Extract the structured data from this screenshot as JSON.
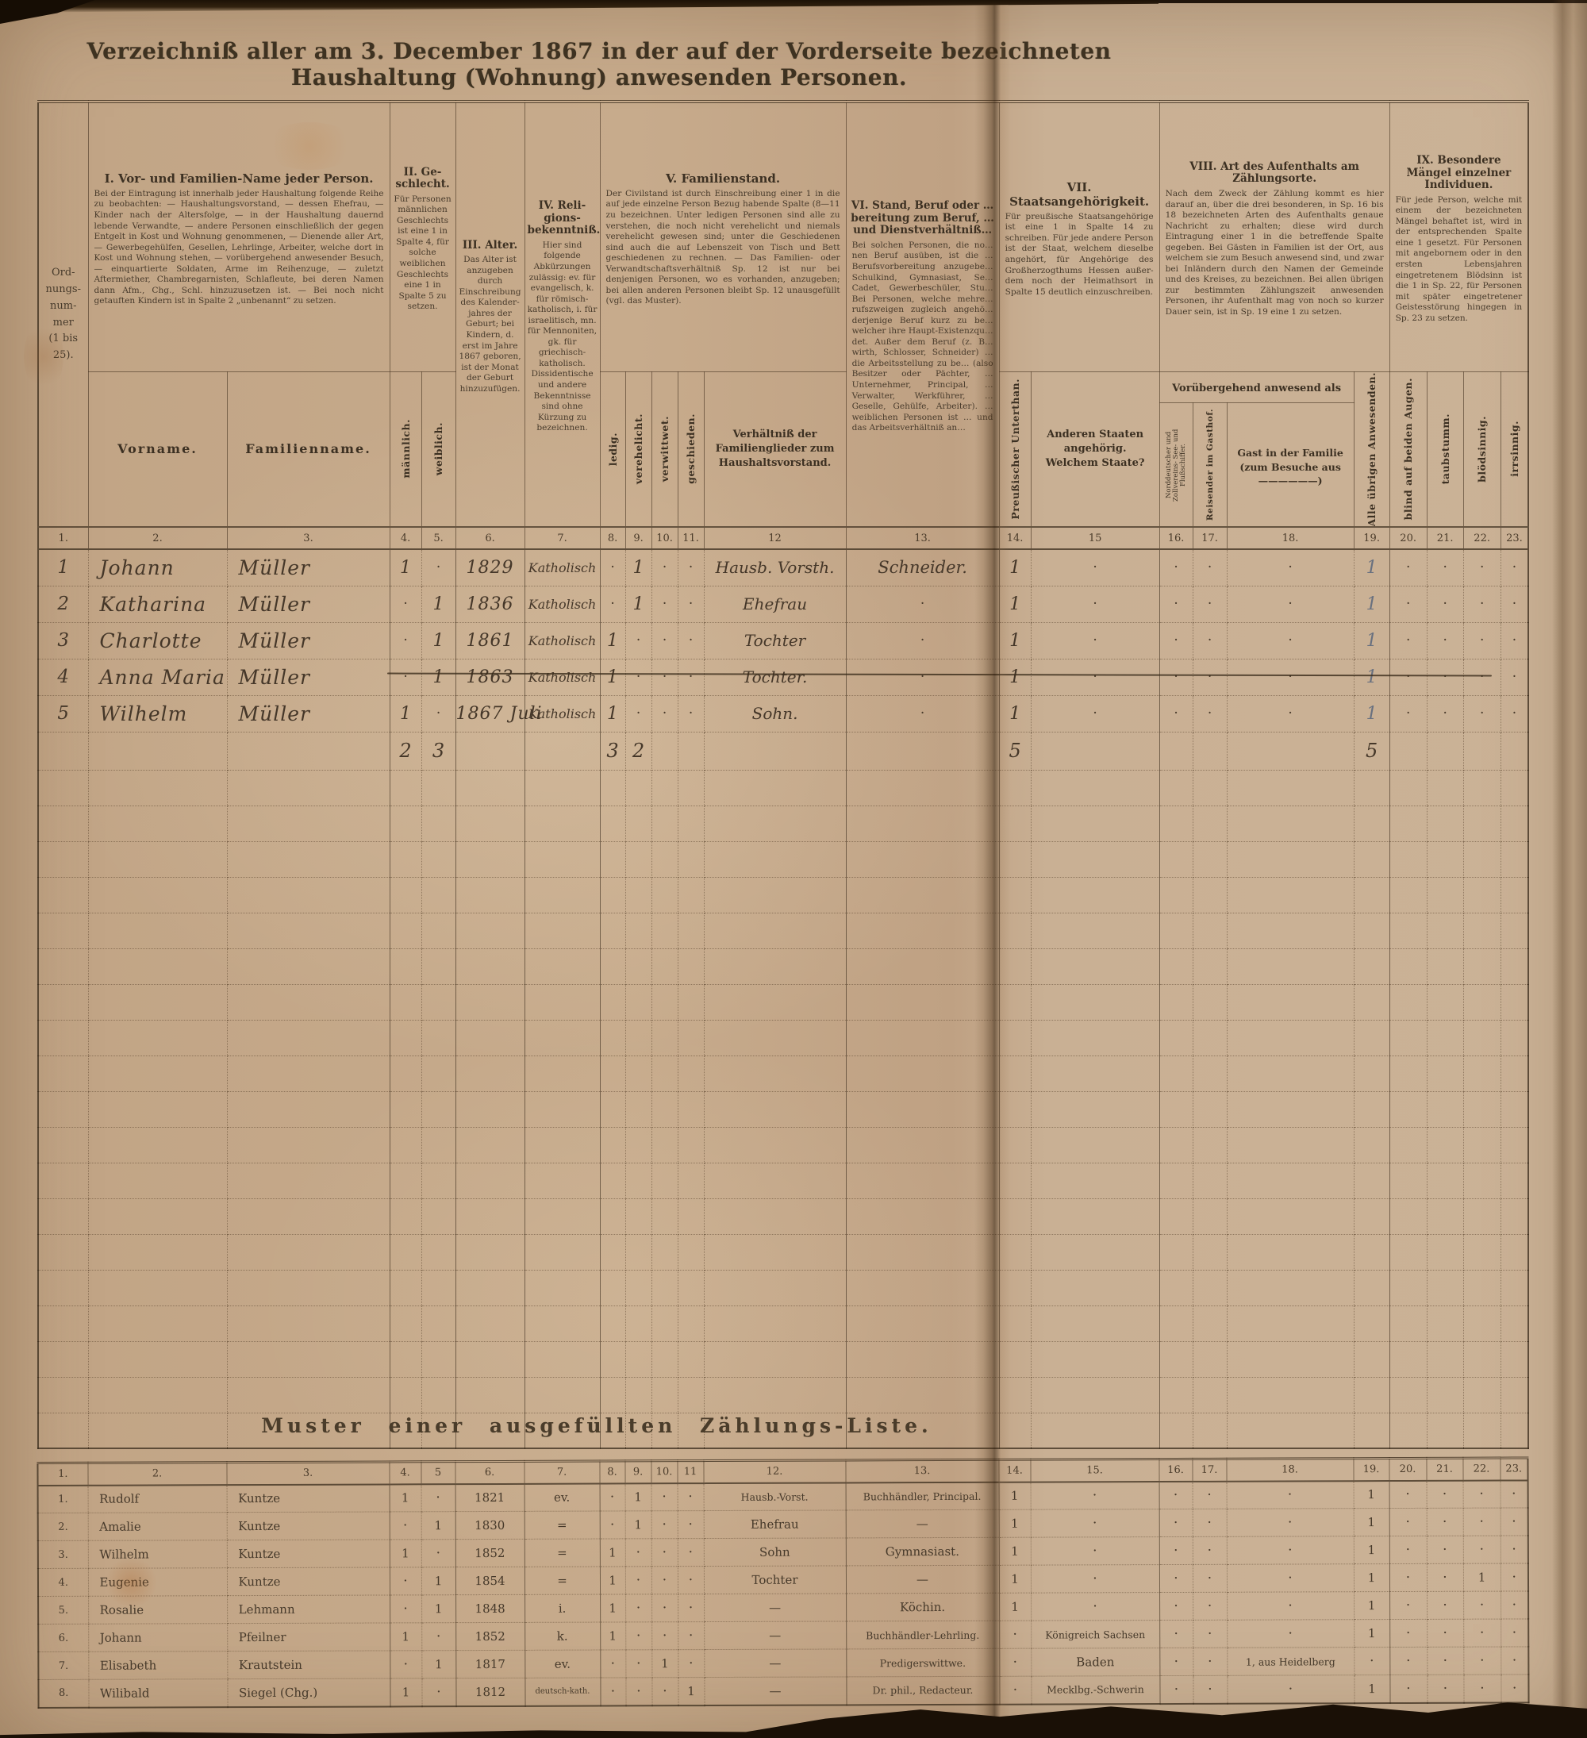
{
  "page_title": "Verzeichniß aller am 3. December 1867 in der auf der Vorderseite bezeichneten Haushaltung (Wohnung) anwesenden Personen.",
  "header": {
    "ord_label": "Ord-\nnungs-\nnum-\nmer\n(1 bis\n25).",
    "g1": {
      "title": "I. Vor- und Familien-Name jeder Person.",
      "body": "Bei der Eintragung ist innerhalb jeder Haushaltung folgende Reihe zu beobachten: — Haushaltungsvorstand, — dessen Ehefrau, — Kinder nach der Altersfolge, — in der Haushaltung dauernd lebende Verwandte, — andere Personen einschließlich der gegen Entgelt in Kost und Wohnung genommenen, — Dienende aller Art, — Gewerbegehülfen, Gesellen, Lehrlinge, Arbeiter, welche dort in Kost und Wohnung stehen, — vorübergehend anwesender Besuch, — einquartierte Soldaten, Arme im Reihenzuge, — zuletzt Aftermiether, Chambregarnisten, Schlafleute, bei deren Namen dann Afm., Chg., Schl. hinzuzusetzen ist. — Bei noch nicht getauften Kindern ist in Spalte 2 „unbenannt“ zu setzen."
    },
    "g2": {
      "title": "II. Ge­schlecht.",
      "body": "Für Personen männ­lichen Geschlechts ist eine 1 in Spalte 4, für solche weiblichen Geschlechts eine 1 in Spalte 5 zu setzen."
    },
    "g3": {
      "title": "III. Alter.",
      "body": "Das Alter ist anzugeben durch Einschrei­bung des Kalender­jahres der Geburt; bei Kin­dern, d. erst im Jahre 1867 gebo­ren, ist der Monat der Geburt hinzuzu­fügen."
    },
    "g4": {
      "title": "IV. Reli­gions­bekenntniß.",
      "body": "Hier sind folgende Abkürzungen zulässig: ev. für evangelisch, k. für römisch-katholisch, i. für israeli­tisch, mn. für Mennoniten, gk. für griechisch-katholisch. Dissidentische und andere Bekenntnisse sind ohne Kürzung zu bezeichnen."
    },
    "g5": {
      "title": "V. Familienstand.",
      "body": "Der Civilstand ist durch Einschreibung einer 1 in die auf jede einzelne Person Bezug habende Spalte (8—11 zu bezeichnen. Unter ledigen Personen sind alle zu verstehen, die noch nicht verehelicht und niemals verehelicht gewesen sind; unter die Geschiedenen sind auch die auf Lebenszeit von Tisch und Bett geschiedenen zu rechnen. — Das Familien- oder Verwandtschaftsverhältniß Sp. 12 ist nur bei denjenigen Personen, wo es vorhanden, anzugeben; bei allen anderen Personen bleibt Sp. 12 unausgefüllt (vgl. das Muster)."
    },
    "g6": {
      "title": "VI. Stand, Beruf oder … bereitung zum Beruf, … und Dienstverhältniß…",
      "body": "Bei solchen Personen, die no… nen Beruf ausüben, ist die … Berufsvorbereitung anzugebe… Schulkind, Gymnasiast, Se… Cadet, Gewerbeschüler, Stu… Bei Personen, welche mehre… rufszweigen zugleich angehö… derjenige Beruf kurz zu be… welcher ihre Haupt-Existenzqu… det. Außer dem Beruf (z. B… wirth, Schlosser, Schneider) … die Arbeitsstellung zu be… (also Besitzer oder Pächter, … Unternehmer, Principal, … Verwalter, Werkführer, … Geselle, Gehülfe, Arbeiter). … weiblichen Personen ist … und das Arbeitsverhältniß an…"
    },
    "g7": {
      "title": "VII. Staatsangehörigkeit.",
      "body": "Für preußische Staatsange­hörige ist eine 1 in Spalte 14 zu schreiben. Für jede andere Person ist der Staat, welchem dieselbe angehört, für Angehörige des Groß­herzogthums Hessen außer­dem noch der Heimathsort in Spalte 15 deutlich ein­zuschreiben."
    },
    "g8": {
      "title": "VIII. Art des Aufenthalts am Zählungsorte.",
      "body": "Nach dem Zweck der Zählung kommt es hier darauf an, über die drei be­sonderen, in Sp. 16 bis 18 bezeich­neten Arten des Aufenthalts genaue Nachricht zu erhalten; diese wird durch Eintragung einer 1 in die betreffende Spalte gegeben. Bei Gästen in Fa­milien ist der Ort, aus welchem sie zum Besuch anwesend sind, und zwar bei In­ländern durch den Namen der Gemeinde und des Kreises, zu bezeichnen. Bei allen übrigen zur bestimmten Zäh­lungszeit anwesenden Personen, ihr Aufenthalt mag von noch so kurzer Dauer sein, ist in Sp. 19 eine 1 zu setzen."
    },
    "g9": {
      "title": "IX. Besondere Mängel einzelner Individuen.",
      "body": "Für jede Person, welche mit einem der bezeich­neten Mängel behaftet ist, wird in der ent­sprechenden Spalte eine 1 gesetzt. Für Personen mit ange­bornem oder in den ersten Lebensjah­ren eingetretenem Blödsinn ist die 1 in Sp. 22, für Personen mit später einge­tretener Geistesstö­rung hingegen in Sp. 23 zu setzen."
    },
    "sub": {
      "vorname": "Vorname.",
      "familienname": "Familienname.",
      "maennlich": "männlich.",
      "weiblich": "weiblich.",
      "ledig": "ledig.",
      "verehelicht": "verehelicht.",
      "verwittwet": "verwittwet.",
      "geschieden": "geschieden.",
      "verhaeltnis": "Verhältniß der Familienglieder zum Haushalts­vorstand.",
      "preussisch": "Preußischer Unterthan.",
      "andere_staaten": "Anderen Staaten angehörig.\nWelchem Staate?",
      "band": "Vorübergehend anwesend als",
      "schiffer": "Norddeutscher und Zollvereins- See- und Flußschiffer.",
      "reisender": "Reisender im Gasthof.",
      "gast": "Gast in der Fa­milie (zum Besuche aus\n——————)",
      "uebrige": "Alle übrigen Anwesenden.",
      "blind": "blind auf bei­den Augen.",
      "taubstumm": "taubstumm.",
      "bloedsinnig": "blödsinnig.",
      "irrsinnig": "irrsinnig."
    }
  },
  "col_numbers": [
    "1.",
    "2.",
    "3.",
    "4.",
    "5.",
    "6.",
    "7.",
    "8.",
    "9.",
    "10.",
    "11.",
    "12",
    "13.",
    "14.",
    "15",
    "16.",
    "17.",
    "18.",
    "19.",
    "20.",
    "21.",
    "22.",
    "23."
  ],
  "entries": [
    [
      "1",
      "Johann",
      "Müller",
      "1",
      "·",
      "1829",
      "Katholisch",
      "·",
      "1",
      "·",
      "·",
      "Hausb. Vorsth.",
      "Schneider.",
      "1",
      "·",
      "·",
      "·",
      "·",
      "1",
      "·",
      "·",
      "·",
      "·"
    ],
    [
      "2",
      "Katharina",
      "Müller",
      "·",
      "1",
      "1836",
      "Katholisch",
      "·",
      "1",
      "·",
      "·",
      "Ehefrau",
      "·",
      "1",
      "·",
      "·",
      "·",
      "·",
      "1",
      "·",
      "·",
      "·",
      "·"
    ],
    [
      "3",
      "Charlotte",
      "Müller",
      "·",
      "1",
      "1861",
      "Katholisch",
      "1",
      "·",
      "·",
      "·",
      "Tochter",
      "·",
      "1",
      "·",
      "·",
      "·",
      "·",
      "1",
      "·",
      "·",
      "·",
      "·"
    ],
    [
      "4",
      "Anna Maria",
      "Müller",
      "·",
      "1",
      "1863",
      "Katholisch",
      "1",
      "·",
      "·",
      "·",
      "Tochter.",
      "·",
      "1",
      "·",
      "·",
      "·",
      "·",
      "1",
      "·",
      "·",
      "·",
      "·"
    ],
    [
      "5",
      "Wilhelm",
      "Müller",
      "1",
      "·",
      "1867 Juli",
      "Katholisch",
      "1",
      "·",
      "·",
      "·",
      "Sohn.",
      "·",
      "1",
      "·",
      "·",
      "·",
      "·",
      "1",
      "·",
      "·",
      "·",
      "·"
    ]
  ],
  "totals": [
    "",
    "",
    "",
    "2",
    "3",
    "",
    "",
    "3",
    "2",
    "",
    "",
    "",
    "",
    "5",
    "",
    "",
    "",
    "",
    "5",
    "",
    "",
    "",
    ""
  ],
  "muster": {
    "title": "Muster einer ausgefüllten Zählungs-Liste.",
    "col_numbers": [
      "1.",
      "2.",
      "3.",
      "4.",
      "5",
      "6.",
      "7.",
      "8.",
      "9.",
      "10.",
      "11",
      "12.",
      "13.",
      "14.",
      "15.",
      "16.",
      "17.",
      "18.",
      "19.",
      "20.",
      "21.",
      "22.",
      "23."
    ],
    "rows": [
      [
        "1.",
        "Rudolf",
        "Kuntze",
        "1",
        "·",
        "1821",
        "ev.",
        "·",
        "1",
        "·",
        "·",
        "Hausb.-Vorst.",
        "Buchhändler, Principal.",
        "1",
        "·",
        "·",
        "·",
        "·",
        "1",
        "·",
        "·",
        "·",
        "·"
      ],
      [
        "2.",
        "Amalie",
        "Kuntze",
        "·",
        "1",
        "1830",
        "=",
        "·",
        "1",
        "·",
        "·",
        "Ehefrau",
        "—",
        "1",
        "·",
        "·",
        "·",
        "·",
        "1",
        "·",
        "·",
        "·",
        "·"
      ],
      [
        "3.",
        "Wilhelm",
        "Kuntze",
        "1",
        "·",
        "1852",
        "=",
        "1",
        "·",
        "·",
        "·",
        "Sohn",
        "Gymnasiast.",
        "1",
        "·",
        "·",
        "·",
        "·",
        "1",
        "·",
        "·",
        "·",
        "·"
      ],
      [
        "4.",
        "Eugenie",
        "Kuntze",
        "·",
        "1",
        "1854",
        "=",
        "1",
        "·",
        "·",
        "·",
        "Tochter",
        "—",
        "1",
        "·",
        "·",
        "·",
        "·",
        "1",
        "·",
        "·",
        "1",
        "·"
      ],
      [
        "5.",
        "Rosalie",
        "Lehmann",
        "·",
        "1",
        "1848",
        "i.",
        "1",
        "·",
        "·",
        "·",
        "—",
        "Köchin.",
        "1",
        "·",
        "·",
        "·",
        "·",
        "1",
        "·",
        "·",
        "·",
        "·"
      ],
      [
        "6.",
        "Johann",
        "Pfeilner",
        "1",
        "·",
        "1852",
        "k.",
        "1",
        "·",
        "·",
        "·",
        "—",
        "Buchhändler-Lehrling.",
        "·",
        "Königreich Sachsen",
        "·",
        "·",
        "·",
        "1",
        "·",
        "·",
        "·",
        "·"
      ],
      [
        "7.",
        "Elisabeth",
        "Krautstein",
        "·",
        "1",
        "1817",
        "ev.",
        "·",
        "·",
        "1",
        "·",
        "—",
        "Predigerswittwe.",
        "·",
        "Baden",
        "·",
        "·",
        "1, aus Heidelberg",
        "·",
        "·",
        "·",
        "·",
        "·"
      ],
      [
        "8.",
        "Wilibald",
        "Siegel (Chg.)",
        "1",
        "·",
        "1812",
        "deutsch-kath.",
        "·",
        "·",
        "·",
        "1",
        "—",
        "Dr. phil., Redacteur.",
        "·",
        "Mecklbg.-Schwerin",
        "·",
        "·",
        "·",
        "1",
        "·",
        "·",
        "·",
        "·"
      ]
    ]
  }
}
